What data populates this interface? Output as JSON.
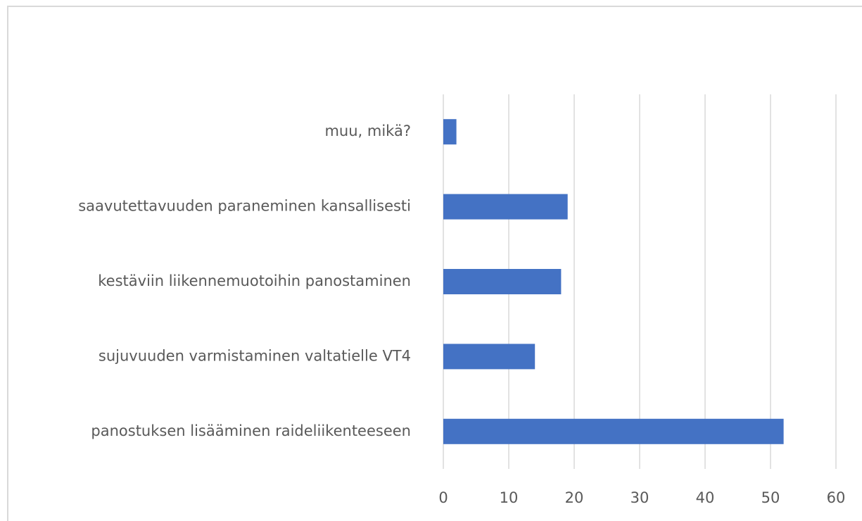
{
  "chart_data": {
    "type": "bar",
    "orientation": "horizontal",
    "categories": [
      "muu, mikä?",
      "saavutettavuuden paraneminen kansallisesti",
      "kestäviin liikennemuotoihin panostaminen",
      "sujuvuuden varmistaminen valtatielle VT4",
      "panostuksen lisääminen raideliikenteeseen"
    ],
    "values": [
      2,
      19,
      18,
      14,
      52
    ],
    "color": "#4472c4",
    "xlim": [
      0,
      60
    ],
    "xticks": [
      0,
      10,
      20,
      30,
      40,
      50,
      60
    ],
    "grid": true
  }
}
